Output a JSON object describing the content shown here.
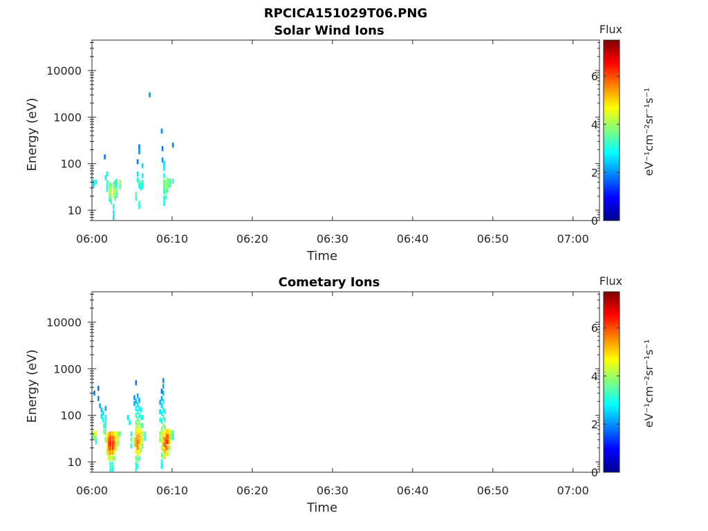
{
  "figure_title": "RPCICA151029T06.PNG",
  "chart_data": [
    {
      "type": "heatmap",
      "title": "Solar Wind Ions",
      "xlabel": "Time",
      "ylabel": "Energy (eV)",
      "x_ticks": [
        "06:00",
        "06:10",
        "06:20",
        "06:30",
        "06:40",
        "06:50",
        "07:00"
      ],
      "x_range_minutes": [
        0,
        63.3
      ],
      "y_scale": "log",
      "y_ticks": [
        "10",
        "100",
        "1000",
        "10000"
      ],
      "y_range": [
        6,
        45000
      ],
      "grid": false,
      "colorbar": {
        "title": "Flux",
        "label": "eV⁻¹cm⁻²sr⁻¹s⁻¹",
        "ticks": [
          "0",
          "2",
          "4",
          "6"
        ],
        "range": [
          0,
          7.5
        ]
      },
      "colormap": "jet",
      "cells": [
        [
          0.2,
          40,
          2.6
        ],
        [
          0.2,
          35,
          2.6
        ],
        [
          0.5,
          40,
          2.7
        ],
        [
          1.6,
          140,
          1.8
        ],
        [
          1.7,
          50,
          2.7
        ],
        [
          1.9,
          60,
          2.8
        ],
        [
          1.9,
          40,
          3.2
        ],
        [
          1.9,
          33,
          3.0
        ],
        [
          1.9,
          28,
          3.1
        ],
        [
          2.2,
          36,
          3.5
        ],
        [
          2.2,
          30,
          3.8
        ],
        [
          2.2,
          25,
          3.9
        ],
        [
          2.2,
          20,
          3.5
        ],
        [
          2.2,
          17,
          3.0
        ],
        [
          2.4,
          34,
          3.7
        ],
        [
          2.4,
          27,
          4.2
        ],
        [
          2.4,
          22,
          4.4
        ],
        [
          2.4,
          19,
          4.0
        ],
        [
          2.4,
          15,
          3.2
        ],
        [
          2.7,
          36,
          3.7
        ],
        [
          2.7,
          29,
          4.0
        ],
        [
          2.7,
          24,
          4.5
        ],
        [
          2.7,
          20,
          4.2
        ],
        [
          2.7,
          12,
          3.0
        ],
        [
          2.7,
          9,
          2.8
        ],
        [
          2.7,
          7,
          2.6
        ],
        [
          2.9,
          40,
          3.0
        ],
        [
          2.9,
          32,
          3.4
        ],
        [
          2.9,
          24,
          4.0
        ],
        [
          2.9,
          18,
          3.4
        ],
        [
          3.1,
          42,
          3.4
        ],
        [
          3.1,
          34,
          3.1
        ],
        [
          3.1,
          26,
          3.6
        ],
        [
          3.1,
          21,
          3.2
        ],
        [
          3.5,
          40,
          4.0
        ],
        [
          3.5,
          32,
          3.5
        ],
        [
          5.5,
          22,
          3.6
        ],
        [
          5.5,
          18,
          3.2
        ],
        [
          5.7,
          110,
          1.8
        ],
        [
          5.7,
          60,
          2.6
        ],
        [
          5.7,
          45,
          2.8
        ],
        [
          5.9,
          230,
          1.8
        ],
        [
          5.9,
          180,
          2.0
        ],
        [
          5.9,
          40,
          3.4
        ],
        [
          5.9,
          33,
          3.0
        ],
        [
          5.9,
          14,
          3.2
        ],
        [
          5.9,
          12,
          3.0
        ],
        [
          6.1,
          36,
          3.2
        ],
        [
          6.1,
          30,
          3.0
        ],
        [
          6.3,
          90,
          2.6
        ],
        [
          6.3,
          55,
          2.8
        ],
        [
          6.3,
          40,
          3.3
        ],
        [
          6.3,
          33,
          3.0
        ],
        [
          7.2,
          3000,
          2.0
        ],
        [
          8.7,
          500,
          2.0
        ],
        [
          8.8,
          210,
          1.8
        ],
        [
          8.8,
          120,
          2.0
        ],
        [
          9.0,
          100,
          2.6
        ],
        [
          9.0,
          80,
          2.7
        ],
        [
          9.0,
          55,
          3.0
        ],
        [
          9.0,
          40,
          3.4
        ],
        [
          9.0,
          32,
          3.3
        ],
        [
          9.0,
          25,
          3.0
        ],
        [
          9.0,
          18,
          3.0
        ],
        [
          9.0,
          14,
          2.8
        ],
        [
          9.2,
          40,
          4.0
        ],
        [
          9.2,
          32,
          4.2
        ],
        [
          9.2,
          25,
          3.8
        ],
        [
          9.2,
          19,
          3.4
        ],
        [
          9.4,
          45,
          3.8
        ],
        [
          9.4,
          35,
          3.6
        ],
        [
          9.4,
          27,
          3.3
        ],
        [
          9.6,
          42,
          3.6
        ],
        [
          9.6,
          34,
          3.4
        ],
        [
          9.8,
          42,
          3.2
        ],
        [
          9.8,
          35,
          3.6
        ],
        [
          10.1,
          42,
          3.2
        ],
        [
          10.1,
          250,
          1.9
        ]
      ]
    },
    {
      "type": "heatmap",
      "title": "Cometary Ions",
      "xlabel": "Time",
      "ylabel": "Energy (eV)",
      "x_ticks": [
        "06:00",
        "06:10",
        "06:20",
        "06:30",
        "06:40",
        "06:50",
        "07:00"
      ],
      "x_range_minutes": [
        0,
        63.3
      ],
      "y_scale": "log",
      "y_ticks": [
        "10",
        "100",
        "1000",
        "10000"
      ],
      "y_range": [
        6,
        45000
      ],
      "grid": false,
      "colorbar": {
        "title": "Flux",
        "label": "eV⁻¹cm⁻²sr⁻¹s⁻¹",
        "ticks": [
          "0",
          "2",
          "4",
          "6"
        ],
        "range": [
          0,
          7.5
        ]
      },
      "colormap": "jet",
      "cells": [
        [
          0.1,
          40,
          3.8
        ],
        [
          0.1,
          33,
          3.4
        ],
        [
          0.3,
          300,
          1.9
        ],
        [
          0.3,
          40,
          4.4
        ],
        [
          0.3,
          33,
          4.0
        ],
        [
          0.5,
          42,
          4.6
        ],
        [
          0.5,
          33,
          3.8
        ],
        [
          0.5,
          27,
          3.0
        ],
        [
          0.8,
          230,
          2.0
        ],
        [
          0.8,
          380,
          1.8
        ],
        [
          1.0,
          160,
          2.2
        ],
        [
          1.2,
          130,
          2.4
        ],
        [
          1.2,
          95,
          2.6
        ],
        [
          1.4,
          110,
          2.6
        ],
        [
          1.4,
          80,
          2.8
        ],
        [
          1.5,
          60,
          3.2
        ],
        [
          1.5,
          45,
          3.6
        ],
        [
          1.7,
          140,
          2.2
        ],
        [
          1.7,
          90,
          2.8
        ],
        [
          1.7,
          70,
          3.0
        ],
        [
          1.7,
          55,
          3.3
        ],
        [
          1.7,
          42,
          3.8
        ],
        [
          1.7,
          30,
          3.6
        ],
        [
          1.9,
          36,
          4.6
        ],
        [
          1.9,
          28,
          5.0
        ],
        [
          1.9,
          20,
          4.8
        ],
        [
          1.9,
          16,
          4.0
        ],
        [
          2.1,
          38,
          5.2
        ],
        [
          2.1,
          30,
          5.8
        ],
        [
          2.1,
          24,
          6.0
        ],
        [
          2.1,
          19,
          5.6
        ],
        [
          2.1,
          15,
          5.0
        ],
        [
          2.1,
          12,
          4.2
        ],
        [
          2.3,
          40,
          5.4
        ],
        [
          2.3,
          32,
          6.1
        ],
        [
          2.3,
          25,
          6.4
        ],
        [
          2.3,
          20,
          6.0
        ],
        [
          2.3,
          16,
          5.4
        ],
        [
          2.3,
          12,
          4.4
        ],
        [
          2.3,
          9,
          3.2
        ],
        [
          2.3,
          7,
          3.0
        ],
        [
          2.6,
          40,
          5.0
        ],
        [
          2.6,
          32,
          5.8
        ],
        [
          2.6,
          25,
          6.2
        ],
        [
          2.6,
          20,
          6.2
        ],
        [
          2.6,
          16,
          5.4
        ],
        [
          2.6,
          12,
          4.2
        ],
        [
          2.6,
          9,
          3.4
        ],
        [
          2.6,
          7,
          3.0
        ],
        [
          2.8,
          40,
          4.8
        ],
        [
          2.8,
          32,
          5.4
        ],
        [
          2.8,
          25,
          5.8
        ],
        [
          2.8,
          20,
          5.4
        ],
        [
          2.8,
          16,
          4.6
        ],
        [
          2.8,
          12,
          3.8
        ],
        [
          3.1,
          40,
          4.4
        ],
        [
          3.1,
          32,
          4.6
        ],
        [
          3.1,
          25,
          4.8
        ],
        [
          3.1,
          20,
          4.2
        ],
        [
          3.3,
          40,
          4.0
        ],
        [
          3.3,
          32,
          4.2
        ],
        [
          3.3,
          25,
          3.8
        ],
        [
          3.5,
          40,
          3.6
        ],
        [
          4.5,
          90,
          2.6
        ],
        [
          4.7,
          70,
          2.8
        ],
        [
          4.9,
          40,
          3.2
        ],
        [
          4.9,
          30,
          3.6
        ],
        [
          4.9,
          22,
          3.2
        ],
        [
          5.3,
          240,
          2.0
        ],
        [
          5.3,
          180,
          2.2
        ],
        [
          5.3,
          30,
          4.2
        ],
        [
          5.3,
          24,
          4.0
        ],
        [
          5.5,
          500,
          1.8
        ],
        [
          5.5,
          200,
          2.4
        ],
        [
          5.5,
          140,
          2.8
        ],
        [
          5.5,
          100,
          3.2
        ],
        [
          5.5,
          70,
          3.6
        ],
        [
          5.5,
          52,
          4.2
        ],
        [
          5.5,
          40,
          5.0
        ],
        [
          5.5,
          30,
          5.4
        ],
        [
          5.5,
          23,
          5.4
        ],
        [
          5.5,
          17,
          4.8
        ],
        [
          5.5,
          12,
          3.6
        ],
        [
          5.5,
          9,
          3.2
        ],
        [
          5.5,
          7,
          3.0
        ],
        [
          5.7,
          260,
          2.2
        ],
        [
          5.7,
          170,
          2.6
        ],
        [
          5.7,
          120,
          3.0
        ],
        [
          5.7,
          85,
          3.4
        ],
        [
          5.7,
          60,
          4.0
        ],
        [
          5.7,
          45,
          4.6
        ],
        [
          5.7,
          34,
          5.4
        ],
        [
          5.7,
          26,
          5.8
        ],
        [
          5.7,
          20,
          5.6
        ],
        [
          5.7,
          15,
          4.8
        ],
        [
          5.7,
          11,
          3.8
        ],
        [
          5.7,
          8,
          3.0
        ],
        [
          5.9,
          210,
          2.2
        ],
        [
          5.9,
          140,
          2.8
        ],
        [
          5.9,
          100,
          3.2
        ],
        [
          5.9,
          70,
          3.8
        ],
        [
          5.9,
          50,
          4.6
        ],
        [
          5.9,
          38,
          5.2
        ],
        [
          5.9,
          28,
          5.4
        ],
        [
          5.9,
          21,
          5.0
        ],
        [
          5.9,
          16,
          4.4
        ],
        [
          5.9,
          12,
          3.4
        ],
        [
          6.1,
          130,
          2.8
        ],
        [
          6.1,
          90,
          3.2
        ],
        [
          6.1,
          60,
          3.8
        ],
        [
          6.1,
          44,
          4.6
        ],
        [
          6.1,
          33,
          5.0
        ],
        [
          6.1,
          25,
          4.8
        ],
        [
          6.1,
          18,
          4.0
        ],
        [
          6.3,
          90,
          2.8
        ],
        [
          6.3,
          60,
          3.2
        ],
        [
          6.3,
          40,
          4.0
        ],
        [
          6.3,
          30,
          4.2
        ],
        [
          6.3,
          22,
          3.6
        ],
        [
          6.6,
          40,
          3.4
        ],
        [
          6.6,
          32,
          3.2
        ],
        [
          8.5,
          190,
          2.2
        ],
        [
          8.5,
          120,
          2.6
        ],
        [
          8.5,
          80,
          3.0
        ],
        [
          8.5,
          40,
          3.8
        ],
        [
          8.5,
          30,
          3.6
        ],
        [
          8.7,
          330,
          1.8
        ],
        [
          8.7,
          230,
          2.2
        ],
        [
          8.7,
          160,
          2.6
        ],
        [
          8.7,
          110,
          2.8
        ],
        [
          8.7,
          75,
          3.2
        ],
        [
          8.7,
          50,
          3.8
        ],
        [
          8.7,
          38,
          4.4
        ],
        [
          8.7,
          28,
          4.6
        ],
        [
          8.7,
          20,
          4.2
        ],
        [
          8.7,
          14,
          3.6
        ],
        [
          8.7,
          10,
          3.0
        ],
        [
          8.7,
          8,
          2.8
        ],
        [
          8.9,
          560,
          2.0
        ],
        [
          8.9,
          420,
          2.2
        ],
        [
          8.9,
          300,
          2.4
        ],
        [
          8.9,
          200,
          2.8
        ],
        [
          8.9,
          130,
          3.0
        ],
        [
          8.9,
          90,
          3.4
        ],
        [
          8.9,
          60,
          3.8
        ],
        [
          8.9,
          43,
          4.6
        ],
        [
          8.9,
          32,
          5.2
        ],
        [
          8.9,
          24,
          5.4
        ],
        [
          8.9,
          18,
          5.0
        ],
        [
          8.9,
          13,
          4.2
        ],
        [
          9.1,
          120,
          2.8
        ],
        [
          9.1,
          80,
          3.2
        ],
        [
          9.1,
          55,
          3.8
        ],
        [
          9.1,
          40,
          4.8
        ],
        [
          9.1,
          30,
          5.6
        ],
        [
          9.1,
          23,
          5.8
        ],
        [
          9.1,
          17,
          5.2
        ],
        [
          9.1,
          13,
          4.2
        ],
        [
          9.3,
          45,
          5.0
        ],
        [
          9.3,
          35,
          5.8
        ],
        [
          9.3,
          27,
          6.2
        ],
        [
          9.3,
          20,
          5.8
        ],
        [
          9.3,
          15,
          4.8
        ],
        [
          9.5,
          45,
          5.0
        ],
        [
          9.5,
          35,
          5.8
        ],
        [
          9.5,
          27,
          6.0
        ],
        [
          9.5,
          20,
          5.2
        ],
        [
          9.5,
          15,
          4.2
        ],
        [
          9.7,
          45,
          4.6
        ],
        [
          9.7,
          35,
          5.0
        ],
        [
          9.7,
          27,
          4.8
        ],
        [
          9.7,
          20,
          4.0
        ],
        [
          9.9,
          42,
          3.8
        ],
        [
          9.9,
          33,
          3.6
        ],
        [
          10.1,
          42,
          3.4
        ],
        [
          10.1,
          33,
          3.2
        ]
      ]
    }
  ]
}
